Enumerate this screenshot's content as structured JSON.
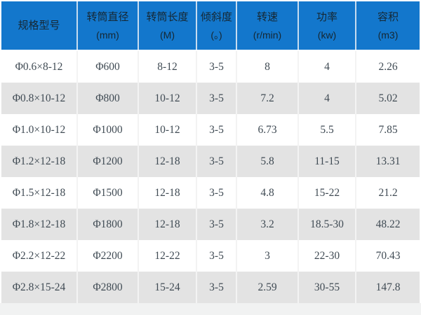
{
  "table": {
    "columns": [
      {
        "label": "规格型号",
        "unit": ""
      },
      {
        "label": "转筒直径",
        "unit": "(mm)"
      },
      {
        "label": "转筒长度",
        "unit": "(M)"
      },
      {
        "label": "倾斜度",
        "unit": "(。)"
      },
      {
        "label": "转速",
        "unit": "(r/min)"
      },
      {
        "label": "功率",
        "unit": "(kw)"
      },
      {
        "label": "容积",
        "unit": "(m3)"
      }
    ],
    "rows": [
      [
        "Φ0.6×8-12",
        "Φ600",
        "8-12",
        "3-5",
        "8",
        "4",
        "2.26"
      ],
      [
        "Φ0.8×10-12",
        "Φ800",
        "10-12",
        "3-5",
        "7.2",
        "4",
        "5.02"
      ],
      [
        "Φ1.0×10-12",
        "Φ1000",
        "10-12",
        "3-5",
        "6.73",
        "5.5",
        "7.85"
      ],
      [
        "Φ1.2×12-18",
        "Φ1200",
        "12-18",
        "3-5",
        "5.8",
        "11-15",
        "13.31"
      ],
      [
        "Φ1.5×12-18",
        "Φ1500",
        "12-18",
        "3-5",
        "4.8",
        "15-22",
        "21.2"
      ],
      [
        "Φ1.8×12-18",
        "Φ1800",
        "12-18",
        "3-5",
        "3.2",
        "18.5-30",
        "48.22"
      ],
      [
        "Φ2.2×12-22",
        "Φ2200",
        "12-22",
        "3-5",
        "3",
        "22-30",
        "70.43"
      ],
      [
        "Φ2.8×15-24",
        "Φ2800",
        "15-24",
        "3-5",
        "2.59",
        "30-55",
        "147.8"
      ]
    ]
  },
  "colors": {
    "header_bg": "#1377cc",
    "header_text": "#162732",
    "header_divider": "#c6dcf0",
    "row_bg": "#ffffff",
    "row_alt_bg": "#e3e3e3",
    "cell_divider": "#f3f3f3",
    "cell_text": "#404b54",
    "footer_bg": "#f1f2f2"
  }
}
